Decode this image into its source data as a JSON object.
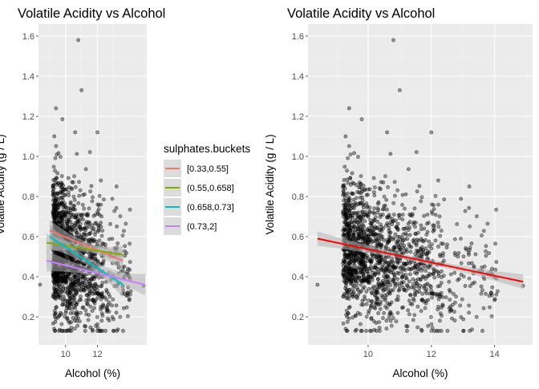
{
  "colors": {
    "panel_bg": "#ebebeb",
    "grid_major": "#ffffff",
    "grid_minor": "#f4f4f4",
    "point_fill": "#000000",
    "band_fill": "#b3b3b3",
    "overall_line": "#ff0000"
  },
  "chart_data": [
    {
      "type": "scatter",
      "title": "Volatile Acidity vs Alcohol",
      "xlabel": "Alcohol (%)",
      "ylabel": "Volatile Acidity (g / L)",
      "xlim": [
        8.3,
        15.1
      ],
      "ylim": [
        0.06,
        1.66
      ],
      "xticks": [
        10,
        12
      ],
      "xtick_labels": [
        "10",
        "12"
      ],
      "yticks": [
        0.2,
        0.4,
        0.6,
        0.8,
        1.0,
        1.2,
        1.4,
        1.6
      ],
      "ytick_labels": [
        "0.2",
        "0.4",
        "0.6",
        "0.8",
        "1.0",
        "1.2",
        "1.4",
        "1.6"
      ],
      "grid": true,
      "legend": {
        "title": "sulphates.buckets",
        "placement": "right",
        "entries": [
          {
            "label": "[0.33,0.55]",
            "color": "#F8766D"
          },
          {
            "label": "(0.55,0.658]",
            "color": "#7CAE00"
          },
          {
            "label": "(0.658,0.73]",
            "color": "#00BFC4"
          },
          {
            "label": "(0.73,2]",
            "color": "#C77CFF"
          }
        ]
      },
      "series": [
        {
          "name": "[0.33,0.55]",
          "color": "#F8766D",
          "x": [
            9.0,
            13.6
          ],
          "y": [
            0.63,
            0.48
          ],
          "band": 0.03
        },
        {
          "name": "(0.55,0.658]",
          "color": "#7CAE00",
          "x": [
            8.8,
            13.6
          ],
          "y": [
            0.57,
            0.51
          ],
          "band": 0.025
        },
        {
          "name": "(0.658,0.73]",
          "color": "#00BFC4",
          "x": [
            9.0,
            13.6
          ],
          "y": [
            0.6,
            0.36
          ],
          "band": 0.035
        },
        {
          "name": "(0.73,2]",
          "color": "#C77CFF",
          "x": [
            8.8,
            15.0
          ],
          "y": [
            0.48,
            0.36
          ],
          "band": 0.03
        }
      ]
    },
    {
      "type": "scatter",
      "title": "Volatile Acidity vs Alcohol",
      "xlabel": "Alcohol (%)",
      "ylabel": "Volatile Acidity (g / L)",
      "xlim": [
        8.1,
        15.2
      ],
      "ylim": [
        0.06,
        1.66
      ],
      "xticks": [
        10,
        12,
        14
      ],
      "xtick_labels": [
        "10",
        "12",
        "14"
      ],
      "yticks": [
        0.2,
        0.4,
        0.6,
        0.8,
        1.0,
        1.2,
        1.4,
        1.6
      ],
      "ytick_labels": [
        "0.2",
        "0.4",
        "0.6",
        "0.8",
        "1.0",
        "1.2",
        "1.4",
        "1.6"
      ],
      "grid": true,
      "series": [
        {
          "color": "#ff0000",
          "x": [
            8.4,
            14.9
          ],
          "y": [
            0.59,
            0.375
          ],
          "band": 0.02
        }
      ]
    }
  ]
}
